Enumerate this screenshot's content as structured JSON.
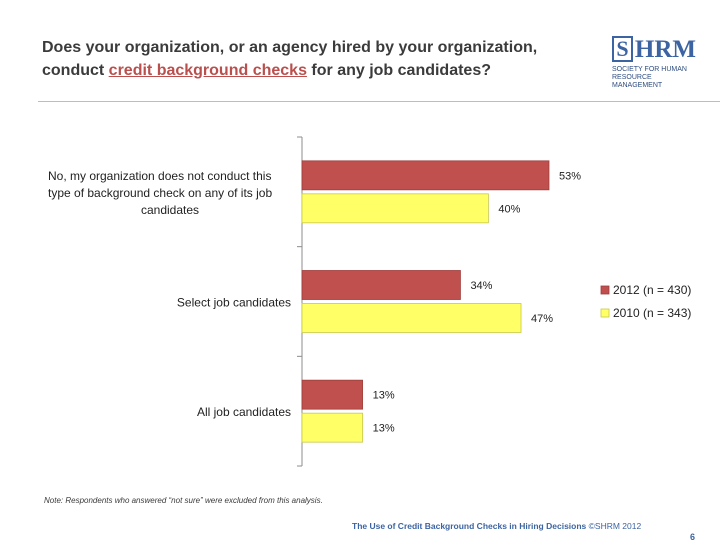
{
  "title": {
    "part1": "Does your organization, or an agency hired by your organization,",
    "part2": "conduct ",
    "highlight": "credit background checks",
    "part3": " for any job candidates?"
  },
  "logo": {
    "box_letter": "S",
    "letters": "HRM",
    "line1": "SOCIETY FOR HUMAN",
    "line2": "RESOURCE MANAGEMENT"
  },
  "note": "Note: Respondents who answered “not sure” were excluded from this analysis.",
  "footer": {
    "text": "The Use of Credit Background Checks in Hiring Decisions ",
    "copyright": "©SHRM 2012"
  },
  "page_number": "6",
  "chart_data": {
    "type": "bar",
    "orientation": "horizontal",
    "categories": [
      [
        "No, my organization does not conduct this",
        "type of background check on any of its job",
        "candidates"
      ],
      [
        "Select job candidates"
      ],
      [
        "All job candidates"
      ]
    ],
    "series": [
      {
        "name": "2012 (n = 430)",
        "color": "#c0504d",
        "values": [
          53,
          34,
          13
        ],
        "labels": [
          "53%",
          "34%",
          "13%"
        ]
      },
      {
        "name": "2010 (n = 343)",
        "color": "#ffff66",
        "values": [
          40,
          47,
          13
        ],
        "labels": [
          "40%",
          "47%",
          "13%"
        ]
      }
    ],
    "xlim": [
      0,
      100
    ],
    "legend_position": "right",
    "grid": false
  }
}
